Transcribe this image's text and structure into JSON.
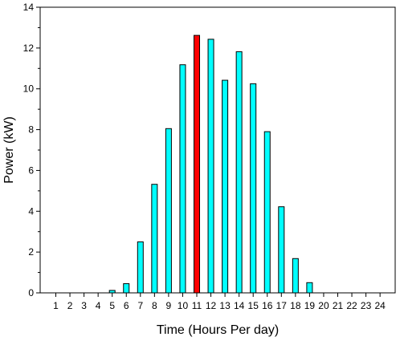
{
  "chart_data": {
    "type": "bar",
    "xlabel": "Time (Hours Per day)",
    "ylabel": "Power (kW)",
    "ylim": [
      0,
      14
    ],
    "yticks": [
      0,
      2,
      4,
      6,
      8,
      10,
      12,
      14
    ],
    "grid": false,
    "legend": "none",
    "categories": [
      "1",
      "2",
      "3",
      "4",
      "5",
      "6",
      "7",
      "8",
      "9",
      "10",
      "11",
      "12",
      "13",
      "14",
      "15",
      "16",
      "17",
      "18",
      "19",
      "20",
      "21",
      "22",
      "23",
      "24"
    ],
    "values": [
      0,
      0,
      0,
      0,
      0.12,
      0.45,
      2.5,
      5.32,
      8.05,
      11.18,
      12.62,
      12.43,
      10.42,
      11.82,
      10.25,
      7.9,
      4.22,
      1.68,
      0.5,
      0,
      0,
      0,
      0,
      0
    ],
    "colors": {
      "bar": "#00ffff",
      "highlight": "#ff0000",
      "outline": "#000000"
    },
    "highlight_index": 10
  }
}
